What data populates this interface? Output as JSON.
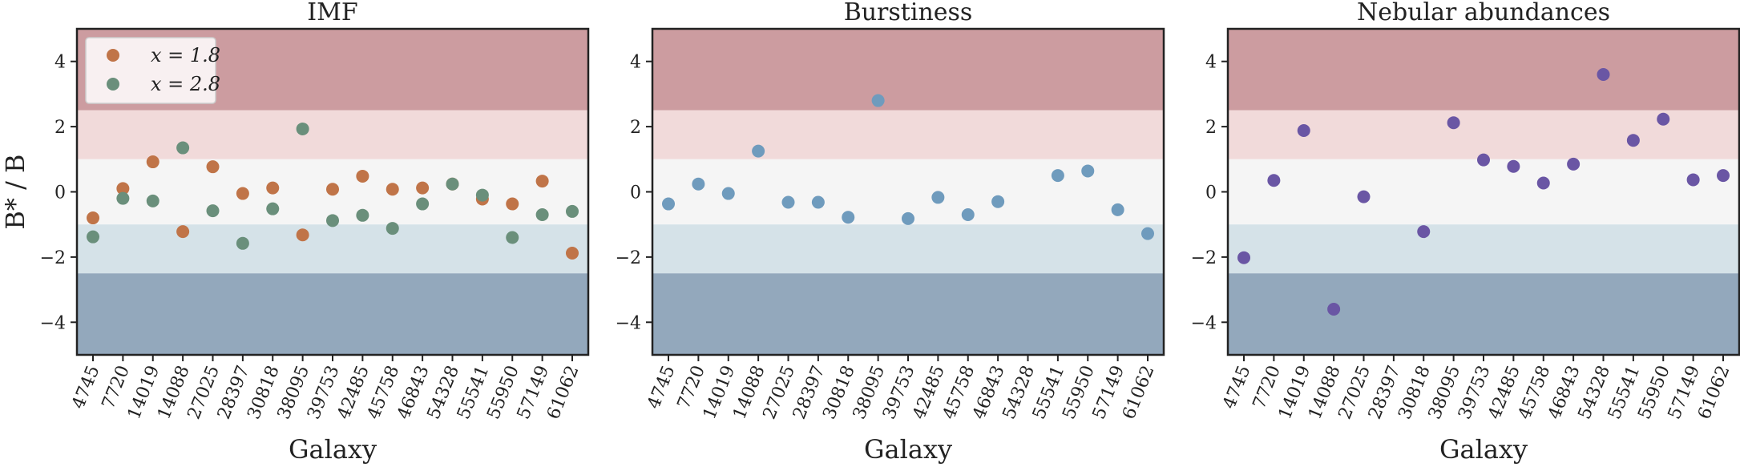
{
  "chart_data": {
    "type": "scatter",
    "ylabel": "B* / B",
    "ylim": [
      -5,
      5
    ],
    "yticks": [
      4,
      2,
      0,
      -2,
      -4
    ],
    "bands": [
      {
        "from": 2.5,
        "to": 5,
        "color": "#cc9ca0"
      },
      {
        "from": 1,
        "to": 2.5,
        "color": "#f1dada"
      },
      {
        "from": -1,
        "to": 1,
        "color": "#f5f5f5"
      },
      {
        "from": -2.5,
        "to": -1,
        "color": "#d5e2e8"
      },
      {
        "from": -5,
        "to": -2.5,
        "color": "#93a8bc"
      }
    ],
    "categories": [
      "4745",
      "7720",
      "14019",
      "14088",
      "27025",
      "28397",
      "30818",
      "38095",
      "39753",
      "42485",
      "45758",
      "46843",
      "54328",
      "55541",
      "55950",
      "57149",
      "61062"
    ],
    "panels": [
      {
        "title": "IMF",
        "xlabel": "Galaxy",
        "legend": "top-left",
        "series": [
          {
            "name": "x = 1.8",
            "color": "#c07448",
            "values": [
              -0.8,
              0.1,
              0.92,
              -1.22,
              0.77,
              -0.05,
              0.12,
              -1.32,
              0.08,
              0.48,
              0.08,
              0.12,
              0.24,
              -0.22,
              -0.37,
              0.33,
              -1.88
            ]
          },
          {
            "name": "x = 2.8",
            "color": "#6a8f7b",
            "values": [
              -1.38,
              -0.2,
              -0.28,
              1.35,
              -0.58,
              -1.58,
              -0.52,
              1.93,
              -0.88,
              -0.72,
              -1.12,
              -0.37,
              0.24,
              -0.1,
              -1.4,
              -0.7,
              -0.6
            ]
          }
        ]
      },
      {
        "title": "Burstiness",
        "xlabel": "Galaxy",
        "series": [
          {
            "color": "#6f9bbd",
            "values": [
              -0.37,
              0.24,
              -0.05,
              1.25,
              -0.32,
              -0.32,
              -0.78,
              2.8,
              -0.82,
              -0.17,
              -0.7,
              -0.3,
              null,
              0.5,
              0.64,
              -0.55,
              -1.28
            ]
          }
        ]
      },
      {
        "title": "Nebular abundances",
        "xlabel": "Galaxy",
        "series": [
          {
            "color": "#6a56a4",
            "values": [
              -2.02,
              0.35,
              1.88,
              -3.6,
              -0.15,
              null,
              -1.22,
              2.12,
              0.98,
              0.78,
              0.27,
              0.85,
              3.6,
              1.58,
              2.23,
              0.37,
              0.5
            ]
          }
        ]
      }
    ]
  }
}
